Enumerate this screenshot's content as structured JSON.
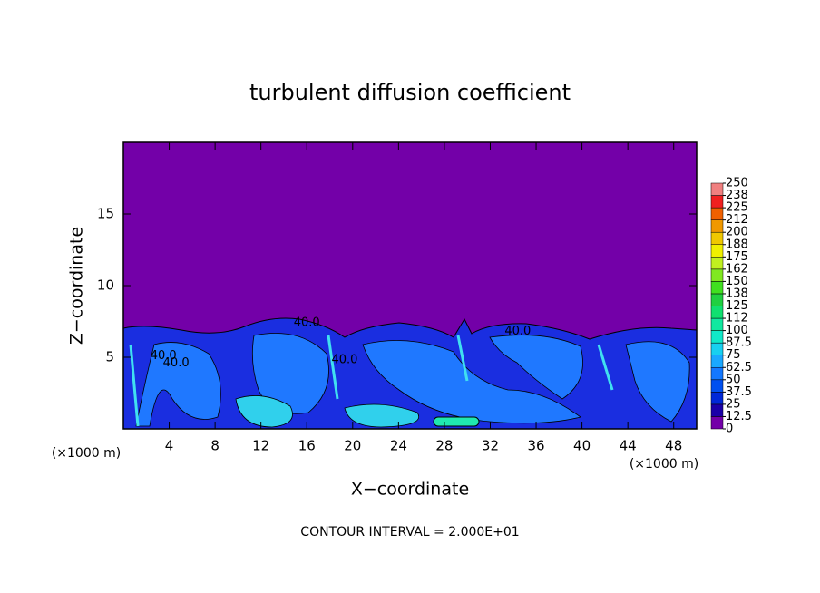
{
  "chart_data": {
    "type": "contour",
    "title": "turbulent diffusion coefficient",
    "xlabel": "X−coordinate",
    "ylabel": "Z−coordinate",
    "x_unit_left": "(×1000 m)",
    "x_unit_right": "(×1000 m)",
    "footer": "CONTOUR INTERVAL = 2.000E+01",
    "xlim": [
      0,
      50
    ],
    "ylim": [
      0,
      20
    ],
    "xticks": [
      4,
      8,
      12,
      16,
      20,
      24,
      28,
      32,
      36,
      40,
      44,
      48
    ],
    "yticks": [
      5,
      10,
      15
    ],
    "contour_labels": [
      {
        "text": "40.0",
        "x": 3.5,
        "y": 5.1
      },
      {
        "text": "40.0",
        "x": 4.6,
        "y": 4.6
      },
      {
        "text": "40.0",
        "x": 16.0,
        "y": 7.4
      },
      {
        "text": "40.0",
        "x": 19.3,
        "y": 4.8
      },
      {
        "text": "40.0",
        "x": 34.4,
        "y": 6.8
      }
    ],
    "colorbar": {
      "levels": [
        0,
        12.5,
        25,
        37.5,
        50,
        62.5,
        75,
        87.5,
        100,
        {
          "value": 112.5,
          "label": "112"
        },
        125,
        {
          "value": 137.5,
          "label": "138"
        },
        150,
        {
          "value": 162.5,
          "label": "162"
        },
        175,
        {
          "value": 187.5,
          "label": "188"
        },
        200,
        {
          "value": 212.5,
          "label": "212"
        },
        225,
        {
          "value": 237.5,
          "label": "238"
        },
        250
      ],
      "colors": [
        "#7300a8",
        "#1a00a8",
        "#0028d8",
        "#0050f0",
        "#1478ff",
        "#1aa8ff",
        "#18d0f0",
        "#10e8c8",
        "#10e8a0",
        "#10e070",
        "#20d040",
        "#40e020",
        "#80e820",
        "#c0f020",
        "#f0f000",
        "#f0c800",
        "#f09800",
        "#f06000",
        "#f02020",
        "#f08080"
      ]
    }
  }
}
